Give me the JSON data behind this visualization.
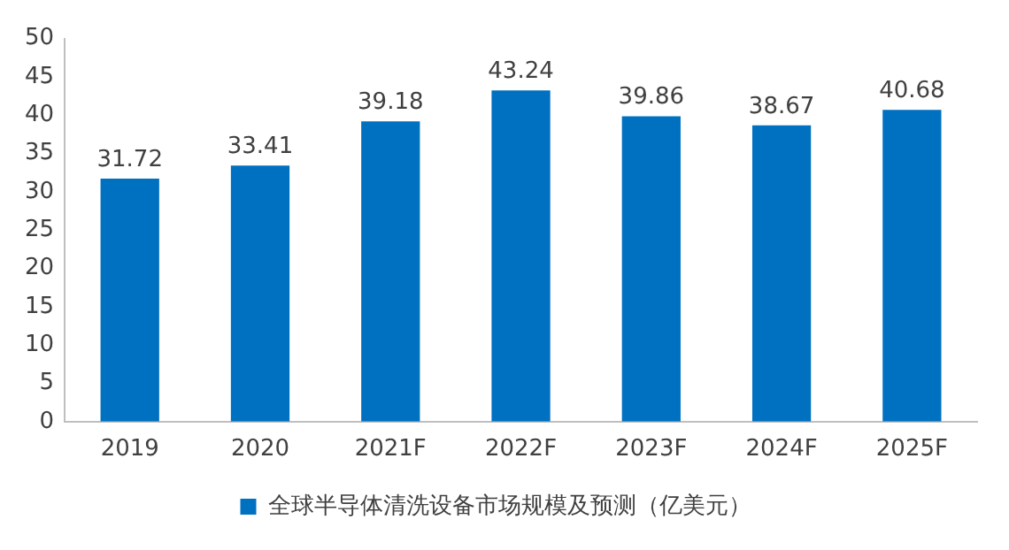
{
  "chart_data": {
    "type": "bar",
    "categories": [
      "2019",
      "2020",
      "2021F",
      "2022F",
      "2023F",
      "2024F",
      "2025F"
    ],
    "series": [
      {
        "name": "全球半导体清洗设备市场规模及预测（亿美元）",
        "color": "#0070c0",
        "values": [
          31.72,
          33.41,
          39.18,
          43.24,
          39.86,
          38.67,
          40.68
        ]
      }
    ],
    "ylim": [
      0,
      50
    ],
    "yticks": [
      0,
      5,
      10,
      15,
      20,
      25,
      30,
      35,
      40,
      45,
      50
    ],
    "grid": false,
    "legend": "bottom",
    "data_labels": true
  }
}
